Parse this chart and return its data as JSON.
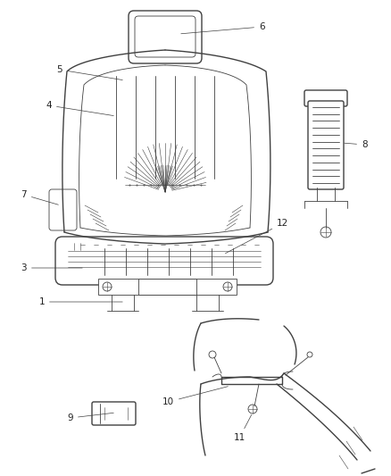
{
  "bg_color": "#f5f5f5",
  "line_color": "#404040",
  "label_color": "#222222",
  "fig_width": 4.39,
  "fig_height": 5.33,
  "dpi": 100,
  "seat_labels": [
    "1",
    "3",
    "4",
    "5",
    "6",
    "7",
    "8",
    "9",
    "10",
    "11",
    "12"
  ]
}
